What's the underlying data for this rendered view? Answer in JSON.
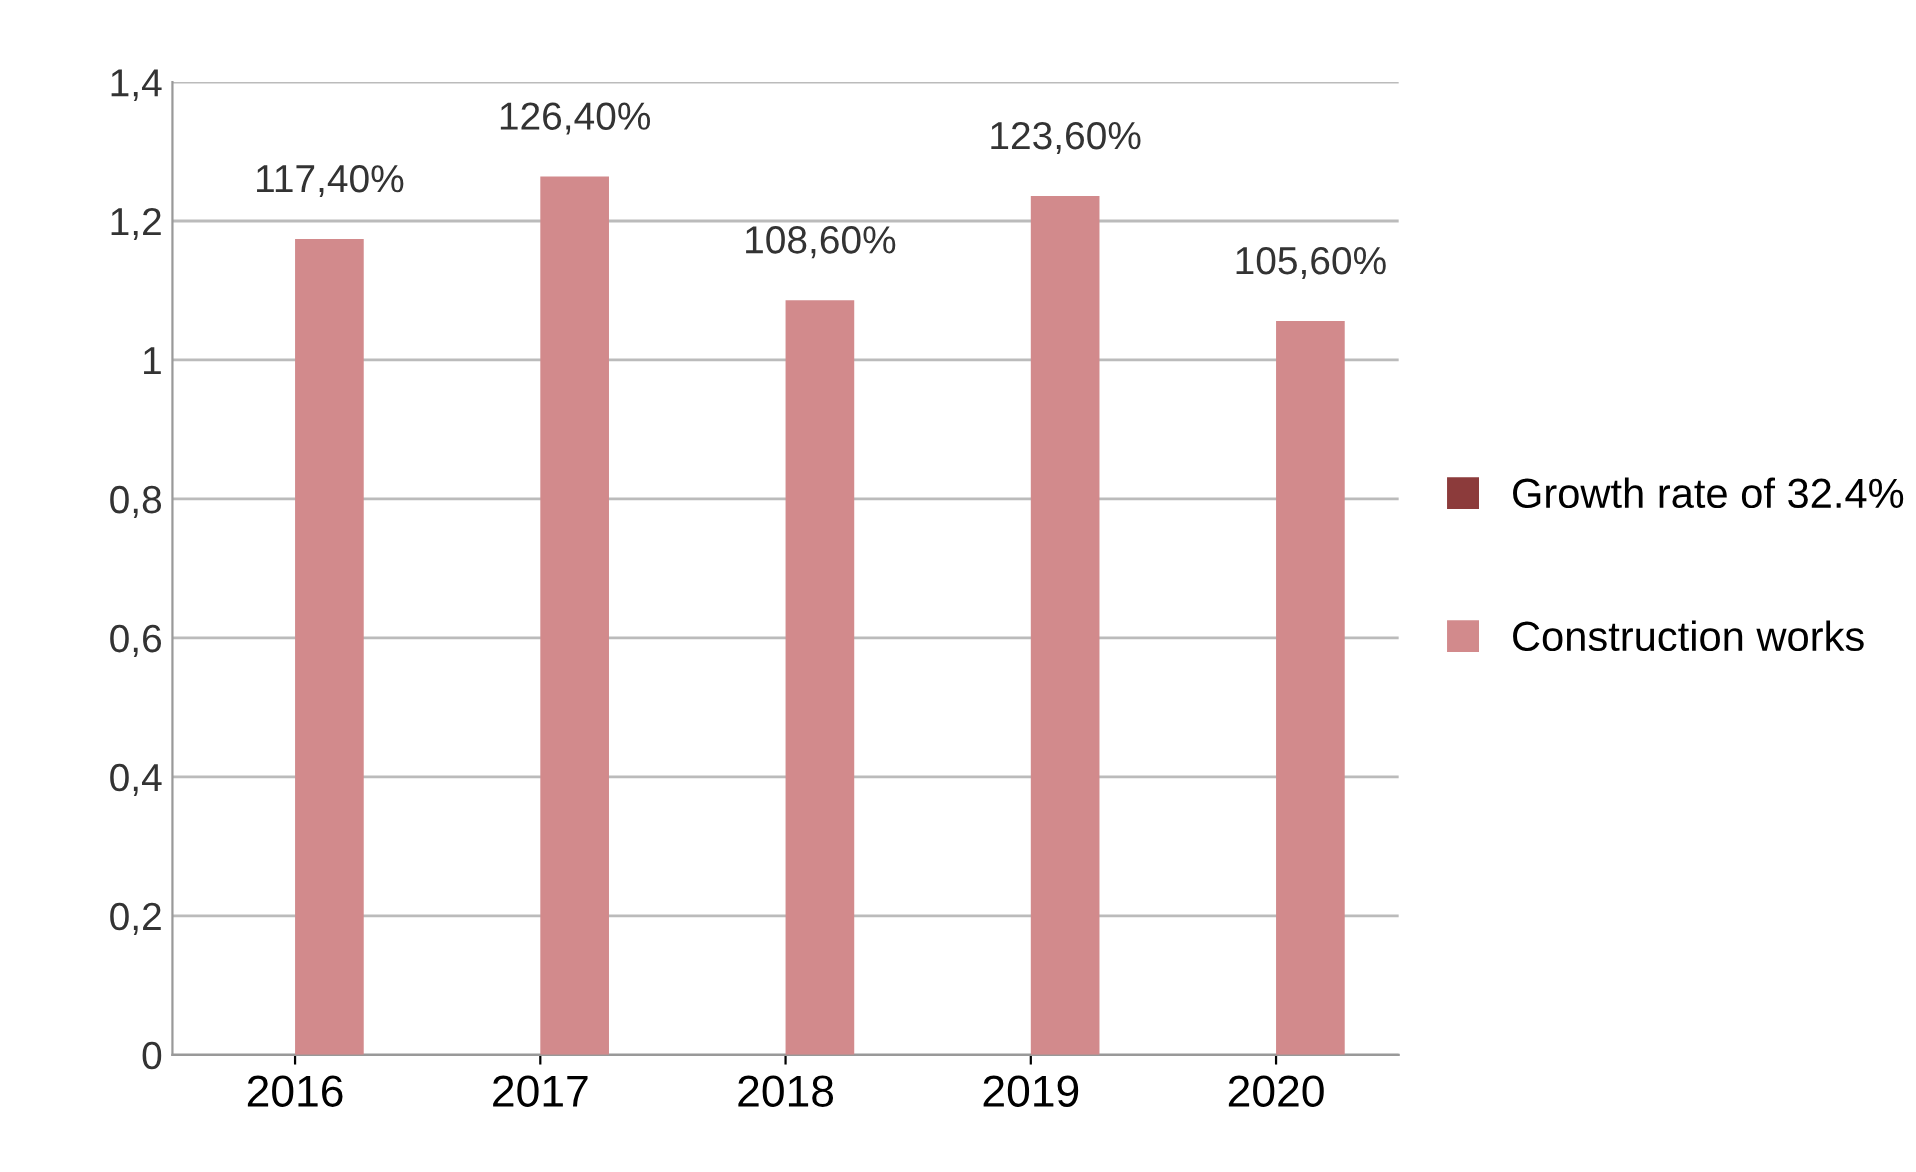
{
  "chart_data": {
    "type": "bar",
    "categories": [
      "2016",
      "2017",
      "2018",
      "2019",
      "2020"
    ],
    "series": [
      {
        "name": "Growth rate of 32.4%",
        "color": "#8c3b3b",
        "values": [
          null,
          null,
          null,
          null,
          null
        ]
      },
      {
        "name": "Construction works",
        "color": "#d28a8c",
        "values": [
          1.174,
          1.264,
          1.086,
          1.236,
          1.056
        ],
        "value_labels": [
          "117,40%",
          "126,40%",
          "108,60%",
          "123,60%",
          "105,60%"
        ]
      }
    ],
    "ylim": [
      0,
      1.4
    ],
    "yticks": [
      0,
      {
        "value": 0.2,
        "label": "0,2"
      },
      {
        "value": 0.4,
        "label": "0,4"
      },
      {
        "value": 0.6,
        "label": "0,6"
      },
      {
        "value": 0.8,
        "label": "0,8"
      },
      1,
      {
        "value": 1.2,
        "label": "1,2"
      },
      {
        "value": 1.4,
        "label": "1,4"
      }
    ],
    "grid": "y",
    "legend": "right"
  }
}
